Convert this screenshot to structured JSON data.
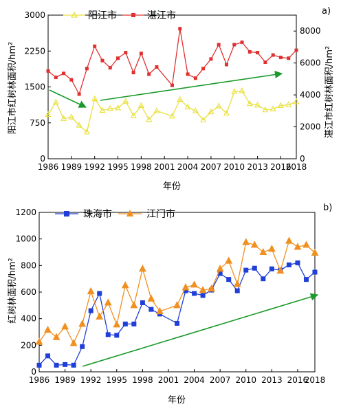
{
  "charts": {
    "top": {
      "panel_label": "a)",
      "xlabel": "年份",
      "ylabel_left": "阳江市红树林面积/hm²",
      "ylabel_right": "湛江市红树林面积/hm²"
    },
    "bottom": {
      "panel_label": "b)",
      "xlabel": "年份",
      "ylabel": "红树林面积/hm²"
    }
  },
  "chart_data": [
    {
      "type": "line",
      "panel": "a)",
      "xlabel": "年份",
      "ylabel": "阳江市红树林面积/hm²",
      "y2label": "湛江市红树林面积/hm²",
      "xlim": [
        1986,
        2018
      ],
      "ylim": [
        0,
        3000
      ],
      "y2lim": [
        0,
        9000
      ],
      "xticks": [
        "1986",
        "1989",
        "1992",
        "1995",
        "1998",
        "2001",
        "2004",
        "2007",
        "2010",
        "2013",
        "2016",
        "2018"
      ],
      "yticks": [
        "0",
        "750",
        "1500",
        "2250",
        "3000"
      ],
      "y2ticks": [
        "0",
        "2000",
        "4000",
        "6000",
        "8000"
      ],
      "legend_position": "top-left",
      "series": [
        {
          "name": "阳江市",
          "axis": "left",
          "color": "#e8e03c",
          "marker": "triangle-up",
          "x": [
            1986,
            1987,
            1988,
            1989,
            1990,
            1991,
            1992,
            1993,
            1994,
            1995,
            1996,
            1997,
            1998,
            1999,
            2000,
            2002,
            2003,
            2004,
            2005,
            2006,
            2007,
            2008,
            2009,
            2010,
            2011,
            2012,
            2013,
            2014,
            2015,
            2016,
            2017,
            2018
          ],
          "values": [
            920,
            1180,
            840,
            870,
            700,
            560,
            1250,
            1010,
            1050,
            1060,
            1200,
            900,
            1110,
            820,
            1000,
            890,
            1240,
            1080,
            1000,
            810,
            980,
            1100,
            950,
            1400,
            1420,
            1150,
            1120,
            1020,
            1040,
            1110,
            1130,
            1190
          ]
        },
        {
          "name": "湛江市",
          "axis": "right",
          "color": "#e03030",
          "marker": "square",
          "x": [
            1986,
            1987,
            1988,
            1989,
            1990,
            1991,
            1992,
            1993,
            1994,
            1995,
            1996,
            1997,
            1998,
            1999,
            2000,
            2002,
            2003,
            2004,
            2005,
            2006,
            2007,
            2008,
            2009,
            2010,
            2011,
            2012,
            2013,
            2014,
            2015,
            2016,
            2017,
            2018
          ],
          "values": [
            5500,
            5100,
            5350,
            4950,
            4050,
            5650,
            7050,
            6150,
            5700,
            6300,
            6650,
            5400,
            6600,
            5300,
            5750,
            4600,
            8150,
            5300,
            5050,
            5650,
            6250,
            7150,
            5900,
            7150,
            7300,
            6700,
            6650,
            6050,
            6500,
            6350,
            6300,
            6800
          ]
        }
      ],
      "annotations": [
        "green arrow: downward trend 1986–1991",
        "green arrow: upward trend 1993–2018"
      ]
    },
    {
      "type": "line",
      "panel": "b)",
      "xlabel": "年份",
      "ylabel": "红树林面积/hm²",
      "xlim": [
        1986,
        2018
      ],
      "ylim": [
        0,
        1200
      ],
      "xticks": [
        "1986",
        "1989",
        "1992",
        "1995",
        "1998",
        "2001",
        "2004",
        "2007",
        "2010",
        "2013",
        "2016",
        "2018"
      ],
      "yticks": [
        "0",
        "200",
        "400",
        "600",
        "800",
        "1000",
        "1200"
      ],
      "legend_position": "top-left",
      "series": [
        {
          "name": "珠海市",
          "color": "#1f3fd8",
          "marker": "square",
          "x": [
            1986,
            1987,
            1988,
            1989,
            1990,
            1991,
            1992,
            1993,
            1994,
            1995,
            1996,
            1997,
            1998,
            1999,
            2000,
            2002,
            2003,
            2004,
            2005,
            2006,
            2007,
            2008,
            2009,
            2010,
            2011,
            2012,
            2013,
            2014,
            2015,
            2016,
            2017,
            2018
          ],
          "values": [
            50,
            120,
            50,
            55,
            50,
            190,
            460,
            590,
            280,
            275,
            360,
            360,
            520,
            470,
            435,
            365,
            610,
            590,
            575,
            615,
            740,
            695,
            610,
            765,
            780,
            700,
            775,
            765,
            805,
            820,
            695,
            750
          ]
        },
        {
          "name": "江门市",
          "color": "#f09020",
          "marker": "triangle-up",
          "x": [
            1986,
            1987,
            1988,
            1989,
            1990,
            1991,
            1992,
            1993,
            1994,
            1995,
            1996,
            1997,
            1998,
            1999,
            2000,
            2002,
            2003,
            2004,
            2005,
            2006,
            2007,
            2008,
            2009,
            2010,
            2011,
            2012,
            2013,
            2014,
            2015,
            2016,
            2017,
            2018
          ],
          "values": [
            225,
            315,
            260,
            340,
            215,
            360,
            605,
            415,
            520,
            355,
            650,
            500,
            775,
            550,
            455,
            500,
            635,
            655,
            615,
            625,
            775,
            835,
            660,
            975,
            955,
            900,
            925,
            760,
            985,
            940,
            955,
            895
          ]
        }
      ],
      "annotations": [
        "green arrow: upward trend 1991–2018"
      ]
    }
  ]
}
